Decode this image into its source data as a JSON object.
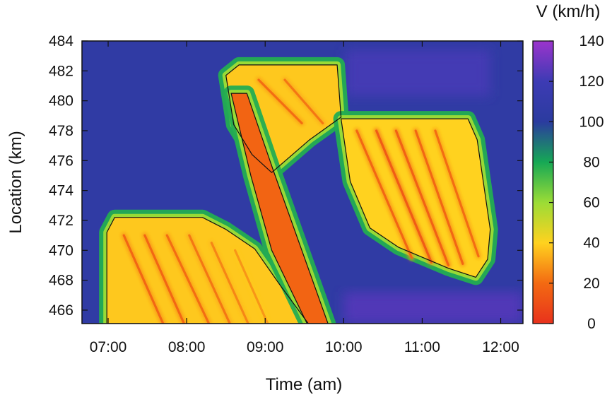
{
  "chart_data": {
    "type": "heatmap",
    "title": "",
    "xlabel": "Time (am)",
    "ylabel": "Location (km)",
    "xlim": [
      "06:40",
      "12:17"
    ],
    "ylim": [
      465.1,
      484
    ],
    "x_ticks": [
      "07:00",
      "08:00",
      "09:00",
      "10:00",
      "11:00",
      "12:00"
    ],
    "y_ticks": [
      466,
      468,
      470,
      472,
      474,
      476,
      478,
      480,
      482,
      484
    ],
    "colorbar": {
      "label": "V (km/h)",
      "range": [
        0,
        140
      ],
      "ticks": [
        0,
        20,
        40,
        60,
        80,
        100,
        120,
        140
      ],
      "stops": [
        {
          "value": 0,
          "color": "#e8321c"
        },
        {
          "value": 20,
          "color": "#f36a12"
        },
        {
          "value": 40,
          "color": "#ffd21f"
        },
        {
          "value": 60,
          "color": "#9bdc36"
        },
        {
          "value": 80,
          "color": "#16a855"
        },
        {
          "value": 100,
          "color": "#2b3b9f"
        },
        {
          "value": 120,
          "color": "#3d3bb4"
        },
        {
          "value": 140,
          "color": "#9b34cc"
        }
      ]
    },
    "background_speed": 105,
    "congested_regions": [
      {
        "label": "lower-left congestion band",
        "speed": 38,
        "points": [
          [
            "06:59",
            465.1
          ],
          [
            "06:59",
            471.2
          ],
          [
            "07:05",
            472.2
          ],
          [
            "08:12",
            472.2
          ],
          [
            "08:30",
            471.4
          ],
          [
            "08:52",
            470.1
          ],
          [
            "09:12",
            467.6
          ],
          [
            "09:33",
            465.1
          ]
        ]
      },
      {
        "label": "upper congestion band",
        "speed": 38,
        "points": [
          [
            "08:30",
            481.7
          ],
          [
            "08:40",
            482.4
          ],
          [
            "09:55",
            482.4
          ],
          [
            "09:58",
            478.9
          ],
          [
            "09:34",
            477.4
          ],
          [
            "09:05",
            475.2
          ],
          [
            "08:50",
            476.4
          ],
          [
            "08:36",
            478.4
          ]
        ]
      },
      {
        "label": "right congestion band",
        "speed": 40,
        "points": [
          [
            "09:58",
            478.8
          ],
          [
            "11:35",
            478.8
          ],
          [
            "11:42",
            477.4
          ],
          [
            "11:52",
            471.4
          ],
          [
            "11:50",
            469.4
          ],
          [
            "11:41",
            468.2
          ],
          [
            "11:20",
            468.8
          ],
          [
            "10:42",
            470.2
          ],
          [
            "10:20",
            471.5
          ],
          [
            "10:05",
            474.6
          ]
        ]
      },
      {
        "label": "main diagonal wave",
        "speed": 18,
        "points": [
          [
            "08:34",
            480.5
          ],
          [
            "08:46",
            480.5
          ],
          [
            "09:06",
            475.4
          ],
          [
            "09:48",
            465.1
          ],
          [
            "09:32",
            465.1
          ],
          [
            "09:05",
            470.0
          ],
          [
            "08:49",
            475.0
          ]
        ]
      }
    ],
    "stop_go_waves": [
      {
        "from": [
          "07:12",
          471.0
        ],
        "to": [
          "07:42",
          465.1
        ],
        "speed": 18
      },
      {
        "from": [
          "07:28",
          471.0
        ],
        "to": [
          "07:58",
          465.1
        ],
        "speed": 18
      },
      {
        "from": [
          "07:45",
          471.0
        ],
        "to": [
          "08:17",
          465.1
        ],
        "speed": 20
      },
      {
        "from": [
          "08:02",
          471.0
        ],
        "to": [
          "08:33",
          465.1
        ],
        "speed": 22
      },
      {
        "from": [
          "08:19",
          470.5
        ],
        "to": [
          "08:47",
          465.1
        ],
        "speed": 25
      },
      {
        "from": [
          "08:37",
          470.0
        ],
        "to": [
          "09:02",
          465.1
        ],
        "speed": 28
      },
      {
        "from": [
          "08:55",
          481.4
        ],
        "to": [
          "09:28",
          478.5
        ],
        "speed": 20
      },
      {
        "from": [
          "09:15",
          481.4
        ],
        "to": [
          "09:44",
          478.5
        ],
        "speed": 22
      },
      {
        "from": [
          "10:10",
          478.0
        ],
        "to": [
          "10:52",
          469.5
        ],
        "speed": 18
      },
      {
        "from": [
          "10:25",
          478.0
        ],
        "to": [
          "11:07",
          469.2
        ],
        "speed": 14
      },
      {
        "from": [
          "10:40",
          478.0
        ],
        "to": [
          "11:20",
          469.0
        ],
        "speed": 16
      },
      {
        "from": [
          "10:55",
          478.0
        ],
        "to": [
          "11:31",
          469.1
        ],
        "speed": 18
      },
      {
        "from": [
          "11:10",
          478.0
        ],
        "to": [
          "11:43",
          469.6
        ],
        "speed": 20
      }
    ],
    "fast_regions": [
      {
        "from": [
          "10:01",
          483.4
        ],
        "to": [
          "11:52",
          480.3
        ],
        "speed": 122
      },
      {
        "from": [
          "10:00",
          465.1
        ],
        "to": [
          "12:17",
          467.2
        ],
        "speed": 125
      }
    ]
  }
}
